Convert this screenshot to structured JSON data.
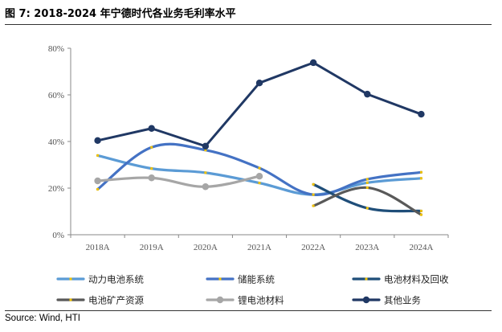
{
  "figure": {
    "title": "图 7:  2018-2024 年宁德时代各业务毛利率水平",
    "source": "Source: Wind, HTI"
  },
  "chart_data": {
    "type": "line",
    "categories": [
      "2018A",
      "2019A",
      "2020A",
      "2021A",
      "2022A",
      "2023A",
      "2024A"
    ],
    "ylim": [
      0,
      80
    ],
    "yticks": [
      0,
      20,
      40,
      60,
      80
    ],
    "ytick_labels": [
      "0%",
      "20%",
      "40%",
      "60%",
      "80%"
    ],
    "ylabel": "",
    "xlabel": "",
    "grid": false,
    "legend_position": "bottom",
    "series": [
      {
        "name": "动力电池系统",
        "color": "#5B9BD5",
        "marker": "none",
        "smooth": true,
        "values": [
          34.0,
          28.4,
          26.6,
          22.2,
          17.2,
          22.3,
          24.2
        ]
      },
      {
        "name": "储能系统",
        "color": "#4472C4",
        "marker": "none",
        "smooth": true,
        "values": [
          19.5,
          37.5,
          36.3,
          28.6,
          17.2,
          23.8,
          26.8
        ]
      },
      {
        "name": "电池材料及回收",
        "color": "#1F4E79",
        "marker": "none",
        "smooth": true,
        "values": [
          null,
          null,
          null,
          null,
          21.6,
          11.4,
          10.2
        ]
      },
      {
        "name": "电池矿产资源",
        "color": "#595959",
        "marker": "none",
        "smooth": true,
        "values": [
          null,
          null,
          null,
          null,
          12.4,
          20.2,
          8.6
        ]
      },
      {
        "name": "锂电池材料",
        "color": "#A6A6A6",
        "marker": "circle",
        "smooth": true,
        "values": [
          23.1,
          24.4,
          20.6,
          25.1,
          null,
          null,
          null
        ]
      },
      {
        "name": "其他业务",
        "color": "#203864",
        "marker": "circle",
        "smooth": false,
        "values": [
          40.4,
          45.6,
          38.0,
          65.1,
          73.8,
          60.3,
          51.7
        ]
      }
    ]
  }
}
